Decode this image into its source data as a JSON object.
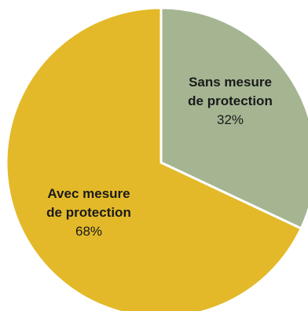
{
  "chart_data": {
    "type": "pie",
    "title": "",
    "slices": [
      {
        "label_lines": [
          "Sans mesure",
          "de protection"
        ],
        "value": 32,
        "value_label": "32%",
        "color": "#A5B592"
      },
      {
        "label_lines": [
          "Avec mesure",
          "de protection"
        ],
        "value": 68,
        "value_label": "68%",
        "color": "#E3B929"
      }
    ],
    "start_angle_deg": 0,
    "direction": "clockwise",
    "slice_border_color": "#ffffff",
    "legend": "none"
  }
}
